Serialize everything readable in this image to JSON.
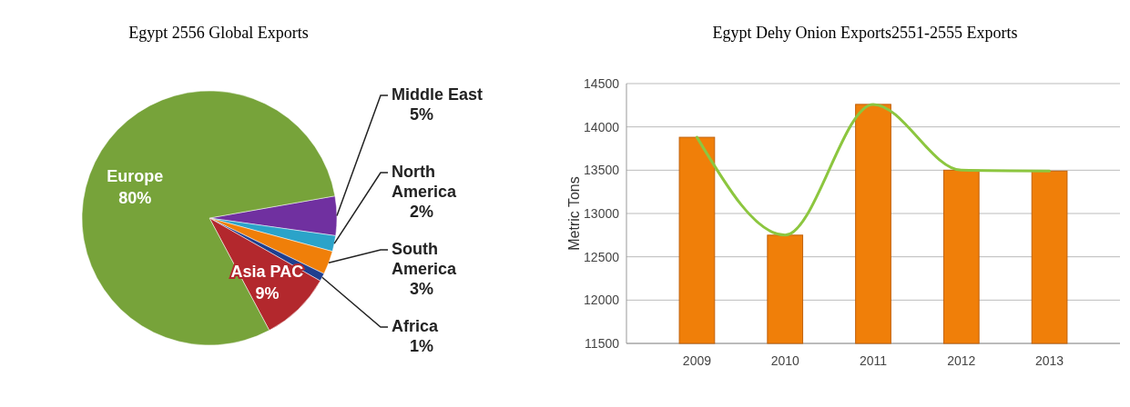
{
  "chart_data": [
    {
      "type": "pie",
      "title": "Egypt 2556 Global Exports",
      "categories": [
        "Middle East",
        "North America",
        "South America",
        "Africa",
        "Asia PAC",
        "Europe"
      ],
      "values": [
        5,
        2,
        3,
        1,
        9,
        80
      ],
      "colors": [
        "#7030a0",
        "#2ba3c9",
        "#f07f09",
        "#1f3f8f",
        "#b3282d",
        "#77a33a"
      ],
      "value_labels": [
        "5%",
        "2%",
        "3%",
        "1%",
        "9%",
        "80%"
      ]
    },
    {
      "type": "bar",
      "title": "Egypt Dehy Onion Exports2551-2555 Exports",
      "ylabel": "Metric Tons",
      "categories": [
        "2009",
        "2010",
        "2011",
        "2012",
        "2013"
      ],
      "series": [
        {
          "type": "bar",
          "color": "#f07f09",
          "values": [
            13880,
            12750,
            14260,
            13500,
            13490
          ]
        },
        {
          "type": "line",
          "color": "#8cc63f",
          "values": [
            13880,
            12750,
            14260,
            13500,
            13490
          ]
        }
      ],
      "ylim": [
        11500,
        14500
      ],
      "yticks": [
        11500,
        12000,
        12500,
        13000,
        13500,
        14000,
        14500
      ],
      "grid": "y",
      "legend": false
    }
  ]
}
